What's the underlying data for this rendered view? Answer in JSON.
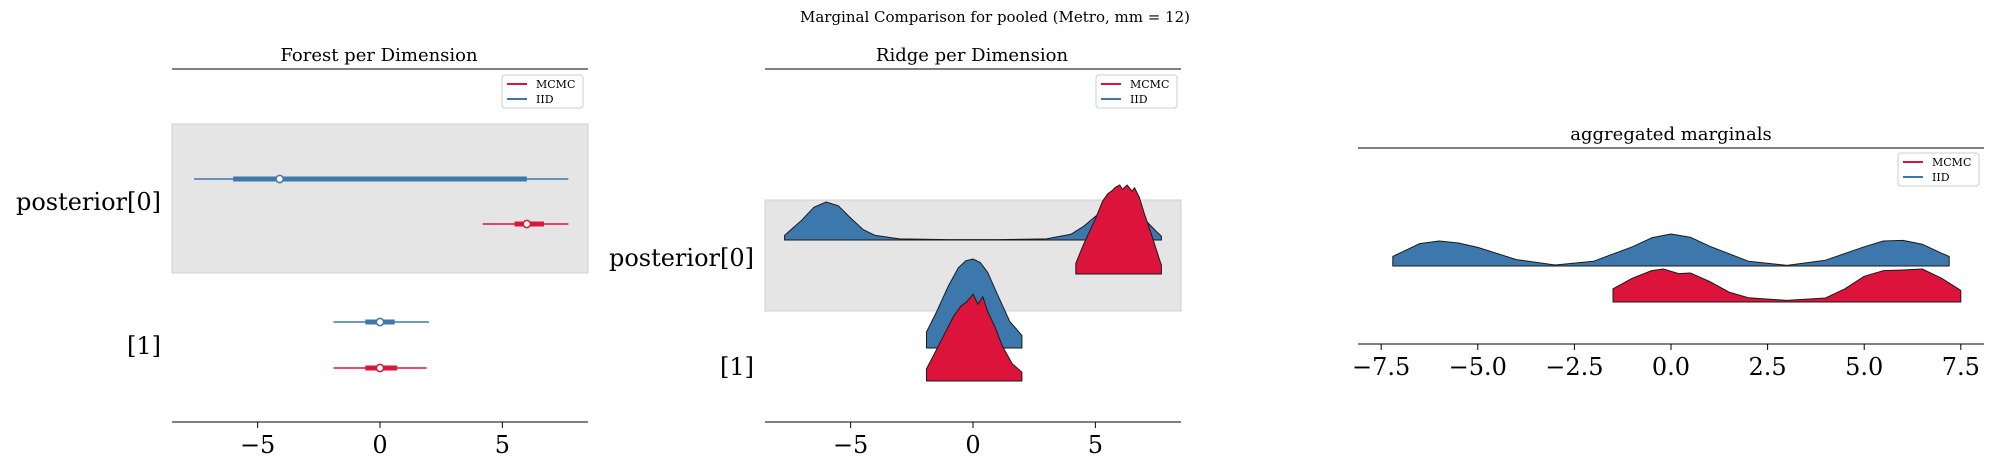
{
  "figure": {
    "suptitle": "Marginal Comparison for pooled (Metro, mm = 12)"
  },
  "colors": {
    "mcmc": "#dc143c",
    "iid": "#3d78ad",
    "band": "#e5e5e5"
  },
  "chart_data": [
    {
      "type": "forest",
      "title": "Forest per Dimension",
      "legend": {
        "placement": "top-right",
        "entries": [
          "MCMC",
          "IID"
        ]
      },
      "xlim": [
        -8.5,
        8.5
      ],
      "xticks": [
        -5,
        0,
        5
      ],
      "xtick_labels": [
        "−5",
        "0",
        "5"
      ],
      "rows": [
        {
          "label": "posterior[0]",
          "shaded": true,
          "series": [
            {
              "name": "IID",
              "median": -4.1,
              "hdi_thin": [
                -7.6,
                7.7
              ],
              "hdi_thick": [
                -6.0,
                6.0
              ]
            },
            {
              "name": "MCMC",
              "median": 6.0,
              "hdi_thin": [
                4.2,
                7.7
              ],
              "hdi_thick": [
                5.5,
                6.7
              ]
            }
          ]
        },
        {
          "label": "[1]",
          "shaded": false,
          "series": [
            {
              "name": "IID",
              "median": 0.0,
              "hdi_thin": [
                -1.9,
                2.0
              ],
              "hdi_thick": [
                -0.6,
                0.6
              ]
            },
            {
              "name": "MCMC",
              "median": 0.0,
              "hdi_thin": [
                -1.9,
                1.9
              ],
              "hdi_thick": [
                -0.6,
                0.7
              ]
            }
          ]
        }
      ]
    },
    {
      "type": "ridge",
      "title": "Ridge per Dimension",
      "legend": {
        "placement": "top-right",
        "entries": [
          "MCMC",
          "IID"
        ]
      },
      "xlim": [
        -8.5,
        8.5
      ],
      "xticks": [
        -5,
        0,
        5
      ],
      "xtick_labels": [
        "−5",
        "0",
        "5"
      ],
      "rows": [
        {
          "label": "posterior[0]",
          "shaded": true,
          "series": [
            {
              "name": "IID",
              "x": [
                -7.7,
                -7.0,
                -6.5,
                -6.0,
                -5.5,
                -5.0,
                -4.5,
                -4.0,
                -3.0,
                -1.0,
                1.0,
                3.0,
                4.0,
                4.5,
                5.0,
                5.5,
                6.0,
                6.5,
                7.0,
                7.5,
                7.7
              ],
              "density": [
                0.12,
                0.52,
                0.86,
                1.0,
                0.9,
                0.58,
                0.28,
                0.12,
                0.03,
                0.01,
                0.01,
                0.03,
                0.15,
                0.35,
                0.62,
                0.85,
                0.95,
                0.82,
                0.55,
                0.22,
                0.1
              ]
            },
            {
              "name": "MCMC",
              "x": [
                4.2,
                4.5,
                5.0,
                5.3,
                5.5,
                5.7,
                5.8,
                6.0,
                6.1,
                6.3,
                6.5,
                6.6,
                6.8,
                7.0,
                7.3,
                7.6,
                7.7
              ],
              "density": [
                0.12,
                0.32,
                0.62,
                0.82,
                0.9,
                0.94,
                0.97,
                1.0,
                0.95,
                1.0,
                0.93,
                0.97,
                0.86,
                0.68,
                0.44,
                0.18,
                0.1
              ]
            }
          ]
        },
        {
          "label": "[1]",
          "shaded": false,
          "series": [
            {
              "name": "IID",
              "x": [
                -1.9,
                -1.5,
                -1.0,
                -0.6,
                -0.3,
                0.0,
                0.3,
                0.6,
                1.0,
                1.5,
                2.0
              ],
              "density": [
                0.18,
                0.4,
                0.7,
                0.9,
                0.98,
                1.0,
                0.96,
                0.85,
                0.6,
                0.3,
                0.14
              ]
            },
            {
              "name": "MCMC",
              "x": [
                -1.9,
                -1.6,
                -1.2,
                -0.8,
                -0.5,
                -0.3,
                -0.1,
                0.0,
                0.2,
                0.4,
                0.6,
                0.9,
                1.2,
                1.6,
                2.0
              ],
              "density": [
                0.14,
                0.3,
                0.52,
                0.74,
                0.86,
                0.9,
                0.96,
                1.0,
                0.88,
                0.97,
                0.8,
                0.62,
                0.4,
                0.2,
                0.1
              ]
            }
          ]
        }
      ]
    },
    {
      "type": "area",
      "title": "aggregated marginals",
      "legend": {
        "placement": "top-right",
        "entries": [
          "MCMC",
          "IID"
        ]
      },
      "xlim": [
        -8.1,
        8.1
      ],
      "xticks": [
        -7.5,
        -5.0,
        -2.5,
        0.0,
        2.5,
        5.0,
        7.5
      ],
      "xtick_labels": [
        "−7.5",
        "−5.0",
        "−2.5",
        "0.0",
        "2.5",
        "5.0",
        "7.5"
      ],
      "series": [
        {
          "name": "IID",
          "x": [
            -7.2,
            -6.5,
            -6.0,
            -5.5,
            -5.0,
            -4.0,
            -3.0,
            -2.0,
            -1.0,
            -0.5,
            0.0,
            0.5,
            1.0,
            2.0,
            3.0,
            4.0,
            5.0,
            5.5,
            6.0,
            6.5,
            7.0,
            7.2
          ],
          "density": [
            0.3,
            0.7,
            0.78,
            0.72,
            0.58,
            0.2,
            0.03,
            0.15,
            0.6,
            0.88,
            1.0,
            0.9,
            0.62,
            0.15,
            0.02,
            0.18,
            0.6,
            0.78,
            0.8,
            0.68,
            0.4,
            0.3
          ]
        },
        {
          "name": "MCMC",
          "x": [
            -1.5,
            -1.0,
            -0.5,
            -0.2,
            0.2,
            0.5,
            1.0,
            1.5,
            2.0,
            3.0,
            4.0,
            4.5,
            5.0,
            5.5,
            6.0,
            6.5,
            7.0,
            7.5
          ],
          "density": [
            0.4,
            0.72,
            0.95,
            1.0,
            0.86,
            0.88,
            0.62,
            0.3,
            0.13,
            0.05,
            0.12,
            0.4,
            0.78,
            0.95,
            0.97,
            1.0,
            0.72,
            0.35
          ]
        }
      ]
    }
  ]
}
